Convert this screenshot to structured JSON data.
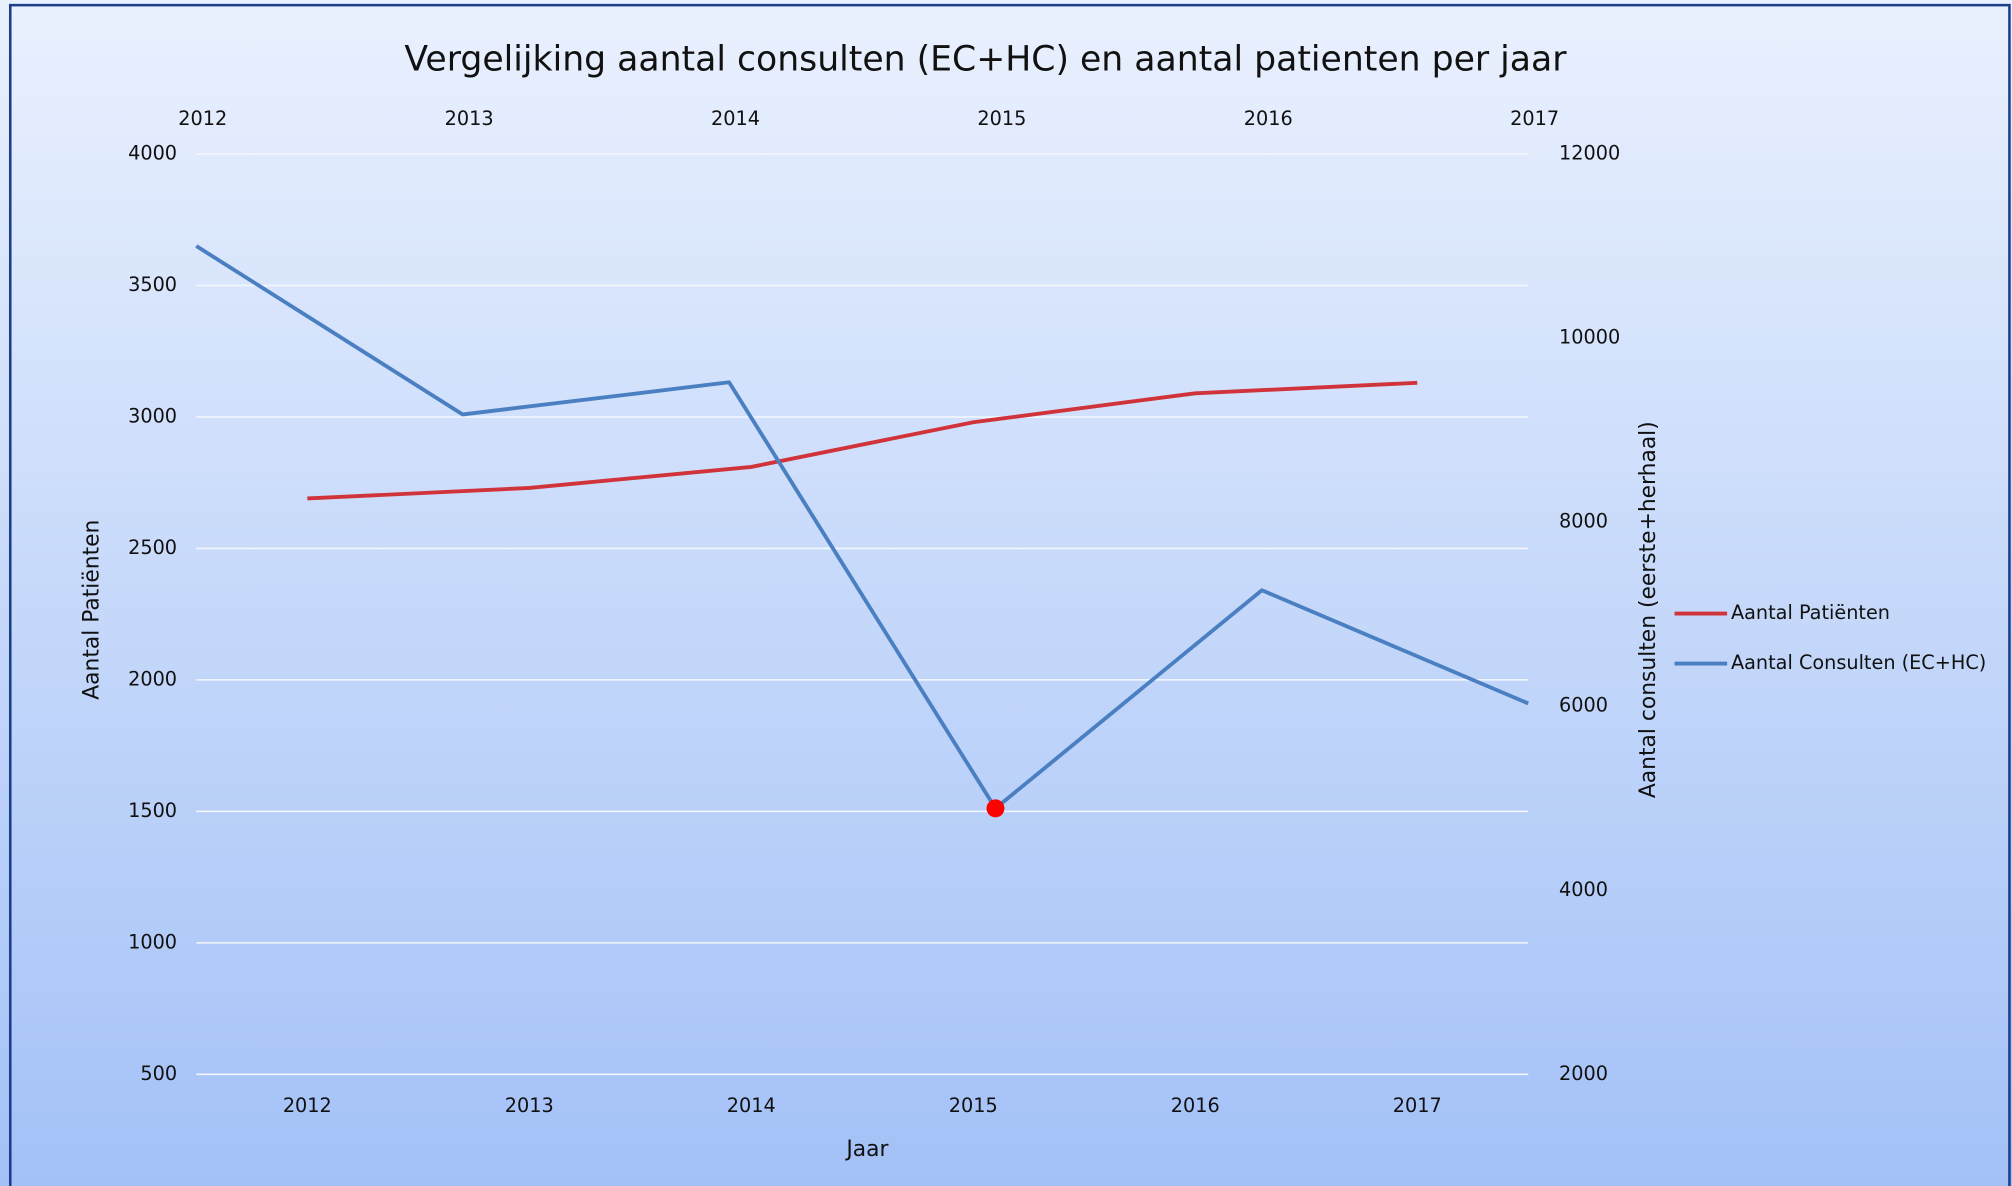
{
  "chart_data": {
    "type": "line",
    "title": "Vergelijking aantal consulten (EC+HC) en aantal patienten per jaar",
    "xlabel": "Jaar",
    "ylabel": "Aantal Patiënten",
    "y2label": "Aantal consulten (eerste+herhaal)",
    "categories": [
      "2012",
      "2013",
      "2014",
      "2015",
      "2016",
      "2017"
    ],
    "x2": [
      2012,
      2013,
      2014,
      2015,
      2016,
      2017
    ],
    "x2lim": [
      2012,
      2017
    ],
    "x2ticks": [
      2012,
      2013,
      2014,
      2015,
      2016,
      2017
    ],
    "ylim": [
      500,
      4000
    ],
    "yticks": [
      500,
      1000,
      1500,
      2000,
      2500,
      3000,
      3500,
      4000
    ],
    "y2lim": [
      2000,
      12000
    ],
    "y2ticks": [
      2000,
      4000,
      6000,
      8000,
      10000,
      12000
    ],
    "grid": true,
    "legend": "right",
    "series": [
      {
        "name": "Aantal Patiënten",
        "color": "#d0343a",
        "values": [
          2690,
          2730,
          2810,
          2980,
          3090,
          3130
        ]
      },
      {
        "name": "Aantal Consulten (EC+HC)",
        "color": "#4a7fc1",
        "axis": "y2",
        "values": [
          11000,
          9170,
          9520,
          4890,
          7260,
          6030
        ]
      }
    ],
    "highlight": {
      "series": 1,
      "index": 3,
      "color": "#ff0000"
    }
  }
}
